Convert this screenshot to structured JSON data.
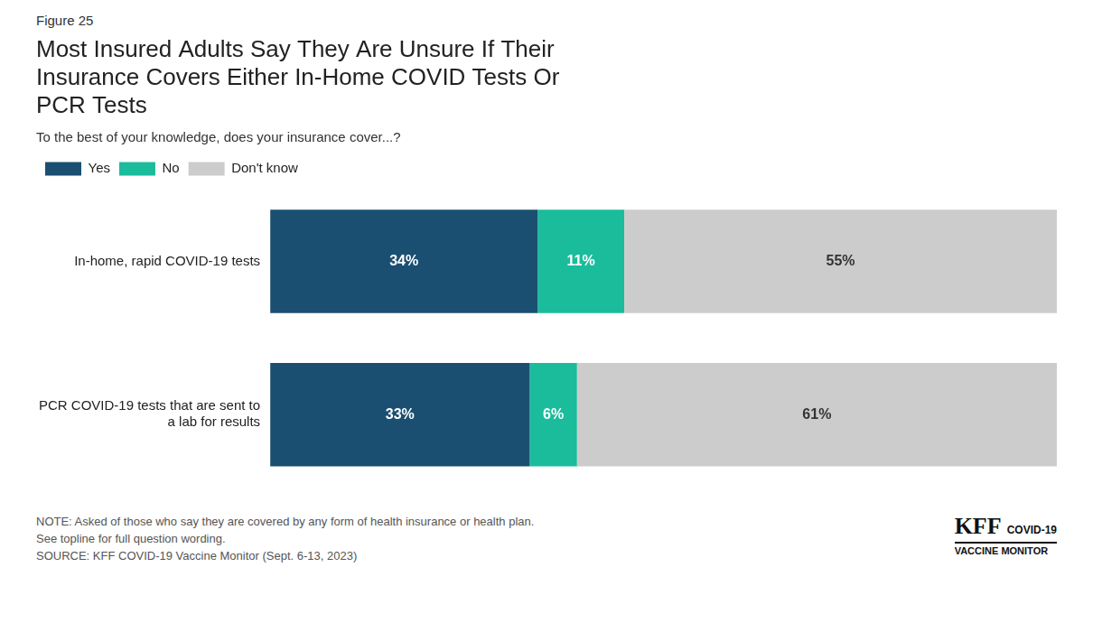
{
  "chart_data": {
    "type": "bar",
    "orientation": "horizontal",
    "stacked": true,
    "title": "Most Insured Adults Say They Are Unsure If Their\nInsurance Covers Either In-Home COVID Tests Or\nPCR Tests",
    "subtitle": "To the best of your knowledge, does your insurance cover...?",
    "categories": [
      "In-home, rapid COVID-19 tests",
      "PCR COVID-19 tests that are sent to\na lab for results"
    ],
    "series": [
      {
        "name": "Yes",
        "color": "#1B4F72",
        "values": [
          34,
          33
        ],
        "value_labels": [
          "34%",
          "33%"
        ]
      },
      {
        "name": "No",
        "color": "#1ABC9C",
        "values": [
          11,
          6
        ],
        "value_labels": [
          "11%",
          "6%"
        ]
      },
      {
        "name": "Don't know",
        "color": "#CCCCCC",
        "values": [
          55,
          61
        ],
        "value_labels": [
          "55%",
          "61%"
        ]
      }
    ],
    "xlim": [
      0,
      100
    ],
    "grid": false,
    "legend": "top",
    "data_labels": true,
    "tick_labels": "y",
    "annotations": [
      "Figure 25",
      "NOTE: Asked of those who say they are covered by any form of health insurance or health plan.",
      "See topline for full question wording.",
      "SOURCE: KFF COVID-19 Vaccine Monitor (Sept. 6-13, 2023)",
      "KFF",
      "COVID-19",
      "VACCINE MONITOR"
    ]
  }
}
